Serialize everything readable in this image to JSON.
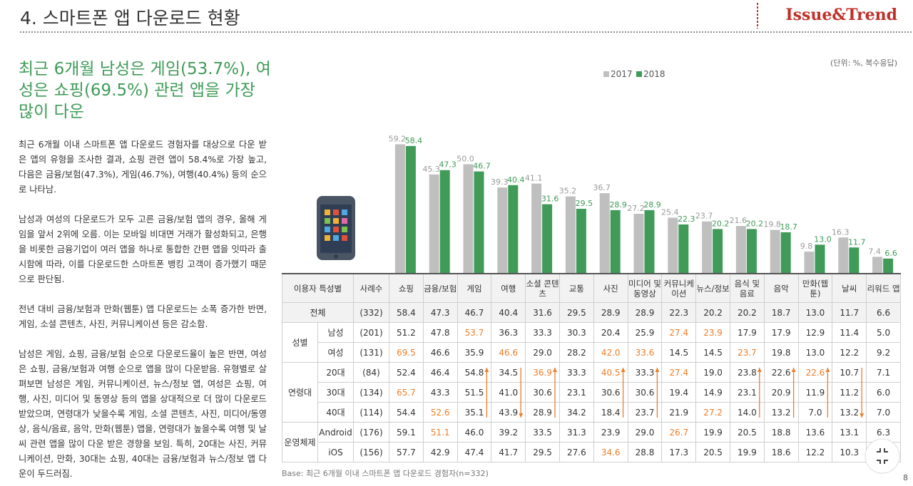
{
  "header": {
    "title": "4. 스마트폰 앱 다운로드 현황",
    "logo": "Issue&Trend"
  },
  "headline": "최근 6개월 남성은 게임(53.7%), 여성은 쇼핑(69.5%) 관련 앱을 가장 많이 다운",
  "paragraphs": [
    "최근 6개월 이내 스마트폰 앱 다운로드 경험자를 대상으로 다운 받은 앱의 유형을 조사한 결과, 쇼핑 관련 앱이 58.4%로 가장 높고, 다음은 금융/보험(47.3%), 게임(46.7%), 여행(40.4%) 등의 순으로 나타남.",
    "남성과 여성의 다운로드가 모두 고른 금융/보험 앱의 경우, 올해 게임을 앞서 2위에 오름. 이는 모바일 비대면 거래가 활성화되고, 은행을 비롯한 금융기업이 여러 앱을 하나로 통합한 간편 앱을 잇따라 출시함에 따라, 이를 다운로드한 스마트폰 뱅킹 고객이 증가했기 때문으로 판단됨.",
    "전년 대비 금융/보험과 만화(웹툰) 앱 다운로드는 소폭 증가한 반면, 게임, 소셜 콘텐츠, 사진, 커뮤니케이션 등은 감소함.",
    "남성은 게임, 쇼핑, 금융/보험 순으로 다운로드율이 높은 반면, 여성은 쇼핑, 금융/보험과 여행 순으로 앱을 많이 다운받음. 유형별로 살펴보면 남성은 게임, 커뮤니케이션, 뉴스/정보 앱, 여성은 쇼핑, 여행, 사진, 미디어 및 동영상 등의 앱을 상대적으로 더 많이 다운로드 받았으며, 연령대가 낮을수록 게임, 소셜 콘텐츠, 사진, 미디어/동영상, 음식/음료, 음악, 만화(웹툰) 앱을, 연령대가 높을수록 여행 및 날씨 관련 앱을 많이 다운 받은 경향을 보임. 특히, 20대는 사진, 커뮤니케이션, 만화, 30대는 쇼핑, 40대는 금융/보험과 뉴스/정보 앱 다운이 두드러짐."
  ],
  "chart_data": {
    "type": "bar",
    "unit_note": "(단위: %, 복수응답)",
    "categories": [
      "쇼핑",
      "금융/보험",
      "게임",
      "여행",
      "소셜 콘텐츠",
      "교통",
      "사진",
      "미디어 및 동영상",
      "커뮤니케이션",
      "뉴스/정보",
      "음식 및 음료",
      "음악",
      "만화(웹툰)",
      "날씨",
      "리워드 앱"
    ],
    "series": [
      {
        "name": "2017",
        "color": "#bfbfbf",
        "values": [
          59.2,
          45.3,
          50.0,
          39.3,
          41.1,
          35.2,
          36.7,
          27.2,
          25.4,
          23.7,
          21.6,
          19.8,
          9.8,
          16.3,
          7.4
        ],
        "value_labels": [
          "59.2",
          "45.3",
          "50.0",
          "39.3",
          "41.1",
          "35.2",
          "36.7",
          "27.2",
          "25.4",
          "23.7",
          "21.6",
          "19.8",
          "9.8",
          "16.3",
          "7.4"
        ]
      },
      {
        "name": "2018",
        "color": "#3f9b57",
        "values": [
          58.4,
          47.3,
          46.7,
          40.4,
          31.6,
          29.5,
          28.9,
          28.9,
          22.3,
          20.2,
          20.2,
          18.7,
          13.0,
          11.7,
          6.6
        ],
        "value_labels": [
          "58.4",
          "47.3",
          "46.7",
          "40.4",
          "31.6",
          "29.5",
          "28.9",
          "28.9",
          "22.3",
          "20.2",
          "20.2",
          "18.7",
          "13.0",
          "11.7",
          "6.6"
        ]
      }
    ],
    "ylim": [
      0,
      60
    ]
  },
  "table": {
    "header": [
      "이용자 특성별",
      "사례수"
    ],
    "total": {
      "label": "전체",
      "n": "(332)",
      "values": [
        "58.4",
        "47.3",
        "46.7",
        "40.4",
        "31.6",
        "29.5",
        "28.9",
        "28.9",
        "22.3",
        "20.2",
        "20.2",
        "18.7",
        "13.0",
        "11.7",
        "6.6"
      ]
    },
    "groups": [
      {
        "label": "성별",
        "rows": [
          {
            "label": "남성",
            "n": "(201)",
            "values": [
              "51.2",
              "47.8",
              "53.7",
              "36.3",
              "33.3",
              "30.3",
              "20.4",
              "25.9",
              "27.4",
              "23.9",
              "17.9",
              "17.9",
              "12.9",
              "11.4",
              "5.0"
            ],
            "highlight": [
              2,
              8,
              9
            ]
          },
          {
            "label": "여성",
            "n": "(131)",
            "values": [
              "69.5",
              "46.6",
              "35.9",
              "46.6",
              "29.0",
              "28.2",
              "42.0",
              "33.6",
              "14.5",
              "14.5",
              "23.7",
              "19.8",
              "13.0",
              "12.2",
              "9.2"
            ],
            "highlight": [
              0,
              3,
              6,
              7,
              10
            ]
          }
        ]
      },
      {
        "label": "연령대",
        "rows": [
          {
            "label": "20대",
            "n": "(84)",
            "values": [
              "52.4",
              "46.4",
              "54.8",
              "34.5",
              "36.9",
              "33.3",
              "40.5",
              "33.3",
              "27.4",
              "19.0",
              "23.8",
              "22.6",
              "22.6",
              "10.7",
              "7.1"
            ],
            "highlight": [
              4,
              6,
              8,
              12
            ]
          },
          {
            "label": "30대",
            "n": "(134)",
            "values": [
              "65.7",
              "43.3",
              "51.5",
              "41.0",
              "30.6",
              "23.1",
              "30.6",
              "30.6",
              "19.4",
              "14.9",
              "23.1",
              "20.9",
              "11.9",
              "11.2",
              "6.0"
            ],
            "highlight": [
              0
            ]
          },
          {
            "label": "40대",
            "n": "(114)",
            "values": [
              "54.4",
              "52.6",
              "35.1",
              "43.9",
              "28.9",
              "34.2",
              "18.4",
              "23.7",
              "21.9",
              "27.2",
              "14.0",
              "13.2",
              "7.0",
              "13.2",
              "7.0"
            ],
            "highlight": [
              1,
              9
            ]
          }
        ]
      },
      {
        "label": "운영체제",
        "rows": [
          {
            "label": "Android",
            "n": "(176)",
            "values": [
              "59.1",
              "51.1",
              "46.0",
              "39.2",
              "33.5",
              "31.3",
              "23.9",
              "29.0",
              "26.7",
              "19.9",
              "20.5",
              "18.8",
              "13.6",
              "13.1",
              "6.3"
            ],
            "highlight": [
              1,
              8
            ]
          },
          {
            "label": "iOS",
            "n": "(156)",
            "values": [
              "57.7",
              "42.9",
              "47.4",
              "41.7",
              "29.5",
              "27.6",
              "34.6",
              "28.8",
              "17.3",
              "20.5",
              "19.9",
              "18.6",
              "12.2",
              "10.3",
              null
            ],
            "highlight": [
              6
            ]
          }
        ]
      }
    ]
  },
  "footer": {
    "base": "Base: 최근 6개월 이내 스마트폰 앱 다운로드 경험자(n=332)",
    "page": "8"
  }
}
